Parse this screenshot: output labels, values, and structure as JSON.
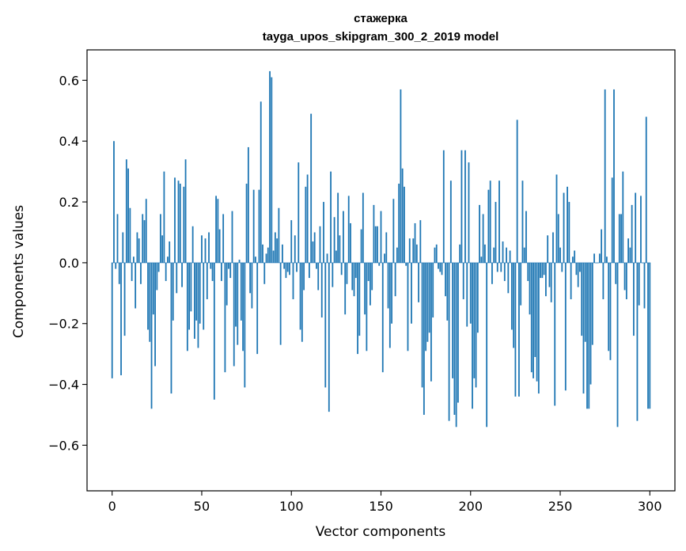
{
  "chart_data": {
    "type": "bar",
    "title_line1": "стажерка",
    "title_line2": "tayga_upos_skipgram_300_2_2019 model",
    "xlabel": "Vector components",
    "ylabel": "Components values",
    "xlim": [
      -14,
      314
    ],
    "ylim": [
      -0.75,
      0.7
    ],
    "xticks": [
      {
        "value": 0,
        "label": "0"
      },
      {
        "value": 50,
        "label": "50"
      },
      {
        "value": 100,
        "label": "100"
      },
      {
        "value": 150,
        "label": "150"
      },
      {
        "value": 200,
        "label": "200"
      },
      {
        "value": 250,
        "label": "250"
      },
      {
        "value": 300,
        "label": "300"
      }
    ],
    "yticks": [
      {
        "value": 0.6,
        "label": "0.6"
      },
      {
        "value": 0.4,
        "label": "0.4"
      },
      {
        "value": 0.2,
        "label": "0.2"
      },
      {
        "value": 0.0,
        "label": "0.0"
      },
      {
        "value": -0.2,
        "label": "−0.2"
      },
      {
        "value": -0.4,
        "label": "−0.4"
      },
      {
        "value": -0.6,
        "label": "−0.6"
      }
    ],
    "bar_color": "#1f77b4",
    "values": [
      -0.38,
      0.4,
      -0.02,
      0.16,
      -0.07,
      -0.37,
      0.1,
      -0.24,
      0.34,
      0.31,
      0.18,
      -0.06,
      0.02,
      -0.15,
      0.1,
      0.08,
      -0.07,
      0.16,
      0.14,
      0.21,
      -0.22,
      -0.26,
      -0.48,
      -0.17,
      -0.34,
      -0.09,
      -0.03,
      0.16,
      0.09,
      0.3,
      -0.06,
      0.02,
      0.07,
      -0.43,
      -0.19,
      0.28,
      -0.1,
      0.27,
      0.26,
      -0.08,
      0.25,
      0.34,
      -0.29,
      -0.22,
      -0.16,
      0.12,
      -0.25,
      -0.19,
      -0.28,
      -0.2,
      0.09,
      -0.22,
      0.08,
      -0.12,
      0.1,
      -0.02,
      -0.06,
      -0.45,
      0.22,
      0.21,
      0.11,
      -0.06,
      0.16,
      -0.36,
      -0.14,
      -0.02,
      -0.05,
      0.17,
      -0.34,
      -0.21,
      -0.27,
      0.01,
      -0.19,
      -0.29,
      -0.41,
      0.26,
      0.38,
      -0.1,
      -0.15,
      0.24,
      0.02,
      -0.3,
      0.24,
      0.53,
      0.06,
      -0.07,
      0.03,
      0.05,
      0.63,
      0.61,
      0.04,
      0.1,
      0.08,
      0.18,
      -0.27,
      0.06,
      -0.02,
      -0.05,
      -0.03,
      -0.04,
      0.14,
      -0.12,
      0.09,
      -0.03,
      0.33,
      -0.22,
      -0.26,
      -0.09,
      0.25,
      0.29,
      -0.05,
      0.49,
      0.07,
      0.1,
      -0.02,
      -0.09,
      0.12,
      -0.18,
      0.2,
      -0.41,
      0.03,
      -0.49,
      0.3,
      -0.08,
      0.15,
      0.04,
      0.23,
      0.09,
      -0.04,
      0.17,
      -0.17,
      -0.07,
      0.22,
      0.13,
      -0.09,
      -0.11,
      -0.05,
      -0.3,
      -0.24,
      0.11,
      0.23,
      -0.17,
      -0.29,
      -0.06,
      -0.14,
      -0.09,
      0.19,
      0.12,
      0.12,
      -0.01,
      0.17,
      -0.36,
      0.03,
      0.1,
      -0.15,
      -0.28,
      -0.2,
      0.21,
      -0.11,
      0.05,
      0.26,
      0.57,
      0.31,
      0.25,
      -0.01,
      -0.29,
      0.08,
      -0.2,
      0.08,
      0.13,
      0.06,
      -0.13,
      0.14,
      -0.41,
      -0.5,
      -0.29,
      -0.26,
      -0.23,
      -0.39,
      -0.18,
      0.05,
      0.06,
      -0.02,
      -0.03,
      -0.04,
      0.37,
      -0.11,
      -0.19,
      -0.52,
      0.27,
      -0.38,
      -0.5,
      -0.54,
      -0.46,
      0.06,
      0.37,
      -0.12,
      0.37,
      -0.21,
      0.33,
      -0.2,
      -0.48,
      -0.38,
      -0.41,
      -0.23,
      0.19,
      0.02,
      0.16,
      0.06,
      -0.54,
      0.24,
      0.27,
      -0.07,
      0.05,
      0.2,
      -0.03,
      0.27,
      -0.03,
      0.07,
      -0.06,
      0.05,
      -0.1,
      0.04,
      -0.22,
      -0.28,
      -0.44,
      0.47,
      -0.44,
      -0.14,
      0.27,
      0.05,
      0.17,
      -0.06,
      -0.17,
      -0.36,
      -0.38,
      -0.31,
      -0.39,
      -0.43,
      -0.05,
      -0.05,
      -0.04,
      -0.11,
      0.09,
      -0.08,
      -0.13,
      0.1,
      -0.47,
      0.29,
      0.16,
      0.05,
      -0.03,
      0.23,
      -0.42,
      0.25,
      0.2,
      -0.12,
      0.02,
      0.04,
      -0.04,
      -0.08,
      -0.03,
      -0.24,
      -0.43,
      -0.26,
      -0.48,
      -0.48,
      -0.4,
      -0.27,
      0.03,
      0.0,
      0.0,
      0.03,
      0.11,
      -0.12,
      0.57,
      0.02,
      -0.29,
      -0.32,
      0.28,
      0.57,
      -0.07,
      -0.54,
      0.16,
      0.16,
      0.3,
      -0.09,
      -0.12,
      0.08,
      0.05,
      0.19,
      -0.24,
      0.23,
      -0.52,
      -0.14,
      0.22,
      0.0,
      -0.15,
      0.48,
      -0.48,
      -0.48
    ]
  }
}
